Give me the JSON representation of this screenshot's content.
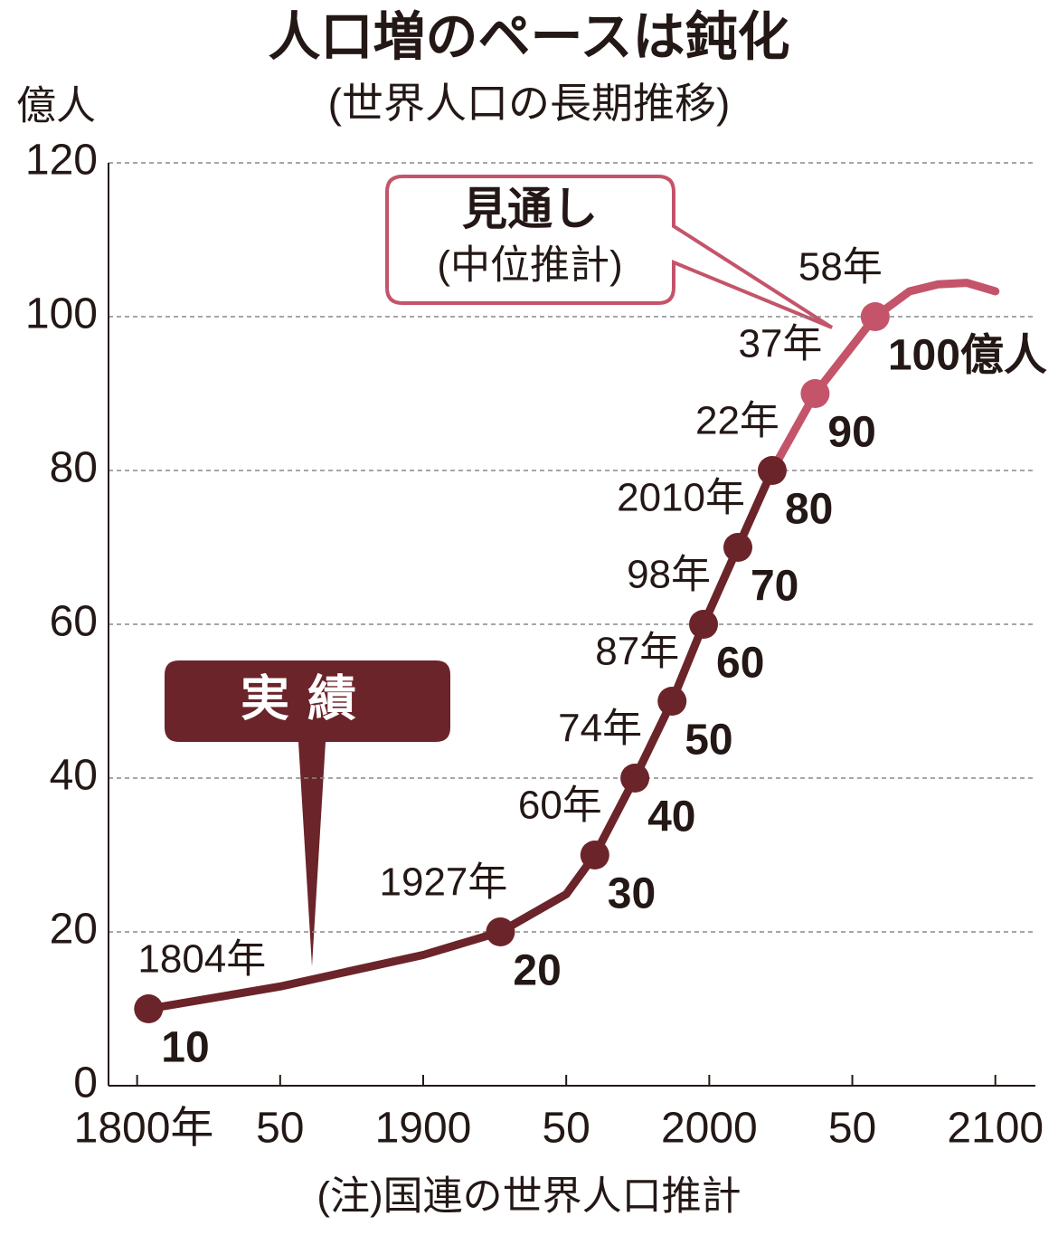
{
  "chart_data": {
    "type": "line",
    "title": "人口増のペースは鈍化",
    "subtitle": "(世界人口の長期推移)",
    "y_unit": "億人",
    "note": "(注)国連の世界人口推計",
    "xlim": [
      1790,
      2114
    ],
    "ylim": [
      0,
      120
    ],
    "xticks": [
      {
        "value": 1800,
        "label": "1800年"
      },
      {
        "value": 1850,
        "label": "50"
      },
      1900,
      {
        "value": 1950,
        "label": "50"
      },
      2000,
      {
        "value": 2050,
        "label": "50"
      },
      2100
    ],
    "yticks": [
      0,
      20,
      40,
      60,
      80,
      100,
      120
    ],
    "grid": true,
    "series": [
      {
        "name": "実績",
        "color": "#6b2429",
        "x": [
          1804,
          1850,
          1900,
          1927,
          1950,
          1960,
          1974,
          1987,
          1998,
          2010,
          2022
        ],
        "values": [
          10,
          12.9,
          17,
          20,
          24.9,
          30,
          40,
          50,
          60,
          70,
          80
        ]
      },
      {
        "name": "見通し",
        "color": "#c4546a",
        "x": [
          2022,
          2037,
          2058,
          2070,
          2080,
          2090,
          2100
        ],
        "values": [
          80,
          90,
          100,
          103.3,
          104.2,
          104.4,
          103.3
        ]
      }
    ],
    "forecast_note": "(中位推計)",
    "points": {
      "x": [
        1804,
        1927,
        1960,
        1974,
        1987,
        1998,
        2010,
        2022,
        2037,
        2058
      ],
      "values": [
        10,
        20,
        30,
        40,
        50,
        60,
        70,
        80,
        90,
        100
      ],
      "x_labels": [
        "1804年",
        "1927年",
        "60年",
        "74年",
        "87年",
        "98年",
        "2010年",
        "22年",
        "37年",
        "58年"
      ],
      "value_labels": [
        "10",
        "20",
        "30",
        "40",
        "50",
        "60",
        "70",
        "80",
        "90",
        "100億人"
      ],
      "colors": [
        "#6b2429",
        "#6b2429",
        "#6b2429",
        "#6b2429",
        "#6b2429",
        "#6b2429",
        "#6b2429",
        "#6b2429",
        "#c4546a",
        "#c4546a"
      ]
    }
  }
}
